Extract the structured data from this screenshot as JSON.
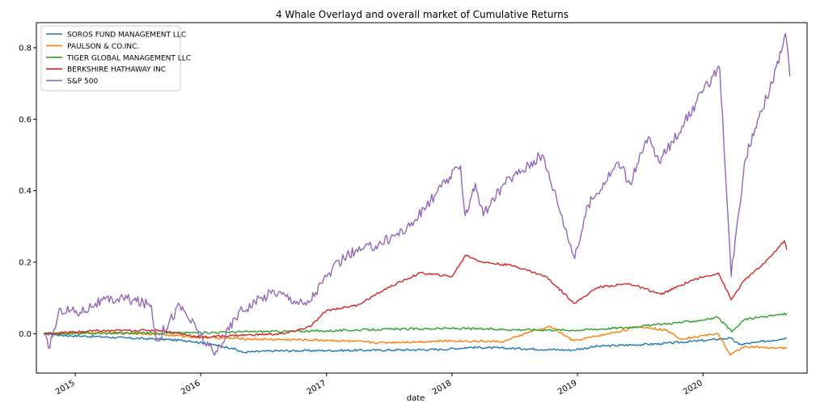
{
  "chart_data": {
    "type": "line",
    "title": "4 Whale Overlayd and overall market of Cumulative Returns",
    "xlabel": "date",
    "ylabel": "",
    "xlim": [
      "2014-09-10",
      "2020-10-30"
    ],
    "ylim": [
      -0.11,
      0.87
    ],
    "grid": false,
    "legend_position": "top-left",
    "x_ticks": [
      {
        "label": "2015",
        "date": "2015-01-01"
      },
      {
        "label": "2016",
        "date": "2016-01-01"
      },
      {
        "label": "2017",
        "date": "2017-01-01"
      },
      {
        "label": "2018",
        "date": "2018-01-01"
      },
      {
        "label": "2019",
        "date": "2019-01-01"
      },
      {
        "label": "2020",
        "date": "2020-01-01"
      }
    ],
    "y_ticks": [
      {
        "label": "0.0",
        "value": 0.0
      },
      {
        "label": "0.2",
        "value": 0.2
      },
      {
        "label": "0.4",
        "value": 0.4
      },
      {
        "label": "0.6",
        "value": 0.6
      },
      {
        "label": "0.8",
        "value": 0.8
      }
    ],
    "series": [
      {
        "name": "SOROS FUND MANAGEMENT LLC",
        "color": "#1f77b4",
        "points": [
          [
            "2014-10-01",
            0.0
          ],
          [
            "2014-12-01",
            -0.005
          ],
          [
            "2015-03-01",
            -0.008
          ],
          [
            "2015-06-01",
            -0.012
          ],
          [
            "2015-09-01",
            -0.015
          ],
          [
            "2015-12-01",
            -0.02
          ],
          [
            "2016-02-01",
            -0.03
          ],
          [
            "2016-04-01",
            -0.04
          ],
          [
            "2016-05-01",
            -0.052
          ],
          [
            "2016-08-01",
            -0.048
          ],
          [
            "2017-01-01",
            -0.047
          ],
          [
            "2017-06-01",
            -0.046
          ],
          [
            "2017-12-01",
            -0.044
          ],
          [
            "2018-03-01",
            -0.038
          ],
          [
            "2018-08-01",
            -0.042
          ],
          [
            "2018-12-15",
            -0.046
          ],
          [
            "2019-03-01",
            -0.035
          ],
          [
            "2019-09-01",
            -0.028
          ],
          [
            "2020-01-15",
            -0.018
          ],
          [
            "2020-03-20",
            -0.012
          ],
          [
            "2020-04-15",
            -0.03
          ],
          [
            "2020-06-01",
            -0.025
          ],
          [
            "2020-09-01",
            -0.012
          ]
        ]
      },
      {
        "name": "PAULSON & CO.INC.",
        "color": "#ff7f0e",
        "points": [
          [
            "2014-10-01",
            0.0
          ],
          [
            "2015-03-01",
            0.003
          ],
          [
            "2015-08-01",
            0.0
          ],
          [
            "2016-01-01",
            -0.01
          ],
          [
            "2016-06-01",
            -0.015
          ],
          [
            "2017-01-01",
            -0.018
          ],
          [
            "2017-06-01",
            -0.025
          ],
          [
            "2018-01-01",
            -0.02
          ],
          [
            "2018-06-01",
            -0.022
          ],
          [
            "2018-08-15",
            0.005
          ],
          [
            "2018-10-15",
            0.02
          ],
          [
            "2018-12-20",
            -0.02
          ],
          [
            "2019-04-01",
            0.0
          ],
          [
            "2019-07-01",
            0.02
          ],
          [
            "2019-09-15",
            0.01
          ],
          [
            "2019-11-01",
            -0.015
          ],
          [
            "2020-01-01",
            -0.005
          ],
          [
            "2020-02-15",
            0.0
          ],
          [
            "2020-03-20",
            -0.06
          ],
          [
            "2020-05-01",
            -0.035
          ],
          [
            "2020-07-01",
            -0.04
          ],
          [
            "2020-09-01",
            -0.04
          ]
        ]
      },
      {
        "name": "TIGER GLOBAL MANAGEMENT LLC",
        "color": "#2ca02c",
        "points": [
          [
            "2014-10-01",
            0.0
          ],
          [
            "2015-06-01",
            0.002
          ],
          [
            "2016-01-01",
            0.003
          ],
          [
            "2016-06-01",
            0.006
          ],
          [
            "2017-01-01",
            0.008
          ],
          [
            "2017-06-01",
            0.012
          ],
          [
            "2018-01-01",
            0.015
          ],
          [
            "2018-06-01",
            0.012
          ],
          [
            "2019-01-01",
            0.01
          ],
          [
            "2019-06-01",
            0.018
          ],
          [
            "2019-12-01",
            0.035
          ],
          [
            "2020-02-15",
            0.045
          ],
          [
            "2020-03-25",
            0.005
          ],
          [
            "2020-05-01",
            0.04
          ],
          [
            "2020-07-01",
            0.048
          ],
          [
            "2020-09-01",
            0.056
          ]
        ]
      },
      {
        "name": "BERKSHIRE HATHAWAY INC",
        "color": "#d62728",
        "points": [
          [
            "2014-10-01",
            0.0
          ],
          [
            "2015-03-01",
            0.008
          ],
          [
            "2015-09-01",
            0.01
          ],
          [
            "2016-01-01",
            -0.01
          ],
          [
            "2016-04-01",
            -0.005
          ],
          [
            "2016-09-01",
            0.0
          ],
          [
            "2016-11-15",
            0.02
          ],
          [
            "2017-01-01",
            0.065
          ],
          [
            "2017-04-01",
            0.08
          ],
          [
            "2017-07-01",
            0.13
          ],
          [
            "2017-10-01",
            0.17
          ],
          [
            "2018-01-01",
            0.16
          ],
          [
            "2018-02-10",
            0.22
          ],
          [
            "2018-04-01",
            0.2
          ],
          [
            "2018-07-01",
            0.19
          ],
          [
            "2018-10-01",
            0.16
          ],
          [
            "2018-12-24",
            0.085
          ],
          [
            "2019-03-01",
            0.13
          ],
          [
            "2019-06-01",
            0.14
          ],
          [
            "2019-09-01",
            0.11
          ],
          [
            "2019-12-01",
            0.15
          ],
          [
            "2020-02-15",
            0.17
          ],
          [
            "2020-03-23",
            0.095
          ],
          [
            "2020-05-01",
            0.15
          ],
          [
            "2020-07-01",
            0.2
          ],
          [
            "2020-08-25",
            0.26
          ],
          [
            "2020-09-01",
            0.235
          ]
        ]
      },
      {
        "name": "S&P 500",
        "color": "#9467bd",
        "points": [
          [
            "2014-10-01",
            0.0
          ],
          [
            "2014-10-15",
            -0.04
          ],
          [
            "2014-11-20",
            0.07
          ],
          [
            "2015-01-15",
            0.06
          ],
          [
            "2015-03-01",
            0.085
          ],
          [
            "2015-05-20",
            0.1
          ],
          [
            "2015-08-10",
            0.08
          ],
          [
            "2015-08-25",
            -0.02
          ],
          [
            "2015-11-01",
            0.08
          ],
          [
            "2016-02-10",
            -0.06
          ],
          [
            "2016-04-20",
            0.06
          ],
          [
            "2016-08-01",
            0.12
          ],
          [
            "2016-11-03",
            0.08
          ],
          [
            "2017-01-01",
            0.16
          ],
          [
            "2017-03-01",
            0.22
          ],
          [
            "2017-06-01",
            0.25
          ],
          [
            "2017-09-01",
            0.3
          ],
          [
            "2017-12-01",
            0.41
          ],
          [
            "2018-01-26",
            0.47
          ],
          [
            "2018-02-08",
            0.33
          ],
          [
            "2018-03-10",
            0.42
          ],
          [
            "2018-04-02",
            0.33
          ],
          [
            "2018-06-01",
            0.42
          ],
          [
            "2018-09-20",
            0.5
          ],
          [
            "2018-11-01",
            0.38
          ],
          [
            "2018-12-24",
            0.21
          ],
          [
            "2019-02-01",
            0.36
          ],
          [
            "2019-04-30",
            0.48
          ],
          [
            "2019-06-03",
            0.42
          ],
          [
            "2019-07-26",
            0.55
          ],
          [
            "2019-08-26",
            0.48
          ],
          [
            "2019-11-01",
            0.58
          ],
          [
            "2020-01-15",
            0.7
          ],
          [
            "2020-02-19",
            0.74
          ],
          [
            "2020-03-23",
            0.16
          ],
          [
            "2020-05-01",
            0.48
          ],
          [
            "2020-06-08",
            0.6
          ],
          [
            "2020-07-20",
            0.7
          ],
          [
            "2020-08-28",
            0.84
          ],
          [
            "2020-09-10",
            0.72
          ]
        ]
      }
    ]
  }
}
